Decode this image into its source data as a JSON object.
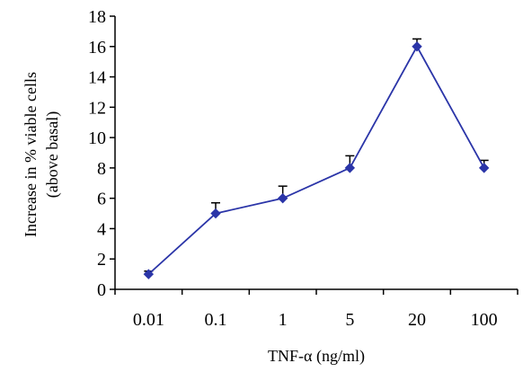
{
  "chart_data": {
    "type": "line",
    "title": "",
    "xlabel": "TNF-α (ng/ml)",
    "ylabel": "Increase in % viable cells",
    "ylabel_line2": "(above basal)",
    "categories": [
      "0.01",
      "0.1",
      "1",
      "5",
      "20",
      "100"
    ],
    "y_ticks": [
      "0",
      "2",
      "4",
      "6",
      "8",
      "10",
      "12",
      "14",
      "16",
      "18"
    ],
    "ylim": [
      0,
      18
    ],
    "grid": false,
    "legend": "none",
    "series": [
      {
        "values": [
          1.0,
          5.0,
          6.0,
          8.0,
          16.0,
          8.0
        ],
        "errors": [
          0.2,
          0.7,
          0.8,
          0.8,
          0.5,
          0.5
        ],
        "color": "#2b35a8",
        "marker": "diamond"
      }
    ]
  }
}
